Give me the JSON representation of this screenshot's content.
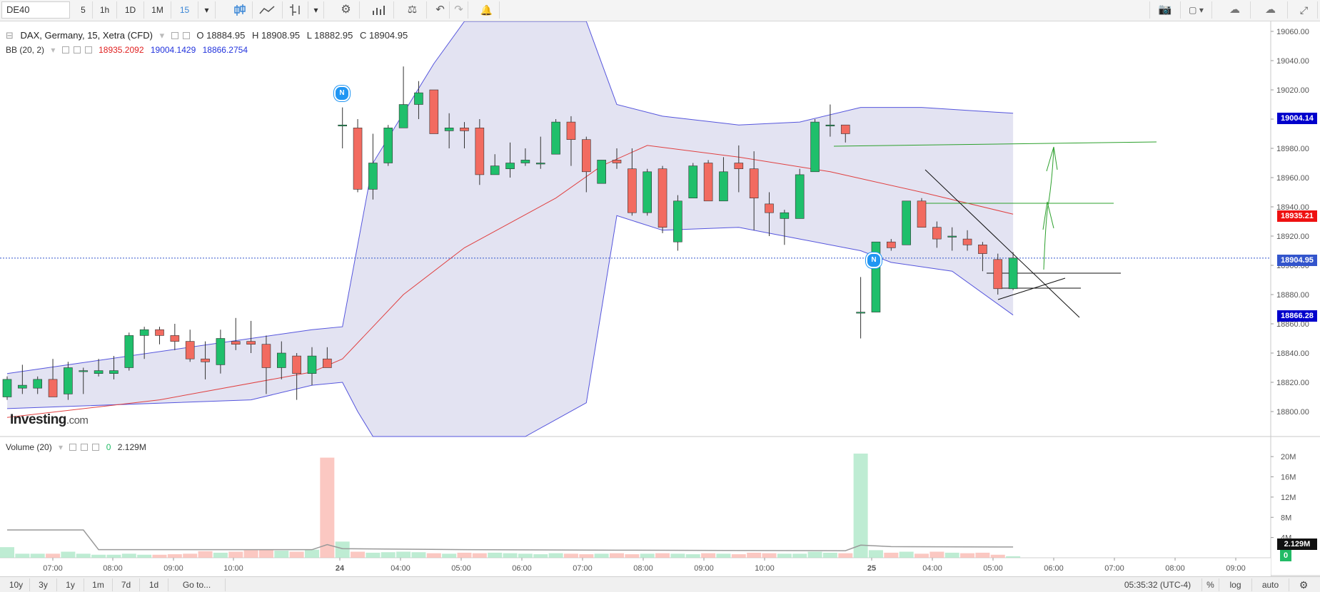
{
  "toolbar": {
    "symbol": "DE40",
    "intervals": [
      "5",
      "1h",
      "1D",
      "1M",
      "15"
    ]
  },
  "legend": {
    "collapse": "⊟",
    "title": "DAX, Germany, 15, Xetra (CFD)",
    "open": "O 18884.95",
    "high": "H 18908.95",
    "low": "L 18882.95",
    "close": "C 18904.95",
    "bb_label": "BB (20, 2)",
    "bb_mid": "18935.2092",
    "bb_upper": "19004.1429",
    "bb_lower": "18866.2754",
    "volume_label": "Volume (20)",
    "volume_zero": "0",
    "volume_value": "2.129M"
  },
  "watermark": {
    "brand": "Investing",
    "suffix": ".com"
  },
  "news_badges": [
    "N",
    "N"
  ],
  "price_axis": {
    "ticks": [
      "19060.00",
      "19040.00",
      "19020.00",
      "19000.00",
      "18980.00",
      "18960.00",
      "18940.00",
      "18920.00",
      "18900.00",
      "18880.00",
      "18860.00",
      "18840.00",
      "18820.00",
      "18800.00"
    ],
    "labels": [
      {
        "text": "19004.14",
        "color": "#0000cc"
      },
      {
        "text": "18935.21",
        "color": "#ee1111"
      },
      {
        "text": "18904.95",
        "color": "#3355cc"
      },
      {
        "text": "18866.28",
        "color": "#0000cc"
      }
    ]
  },
  "volume_axis": {
    "ticks": [
      "20M",
      "16M",
      "12M",
      "8M",
      "4M"
    ],
    "labels": [
      {
        "text": "2.129M",
        "color": "#111111"
      },
      {
        "text": "0",
        "color": "#22bb66"
      }
    ]
  },
  "time_axis": [
    "07:00",
    "08:00",
    "09:00",
    "10:00",
    "24",
    "04:00",
    "05:00",
    "06:00",
    "07:00",
    "08:00",
    "09:00",
    "10:00",
    "25",
    "04:00",
    "05:00",
    "06:00",
    "07:00",
    "08:00",
    "09:00"
  ],
  "bottom_bar": {
    "ranges": [
      "10y",
      "3y",
      "1y",
      "1m",
      "7d",
      "1d",
      "Go to..."
    ],
    "clock": "05:35:32 (UTC-4)",
    "percent": "%",
    "log": "log",
    "auto": "auto"
  },
  "chart_data": {
    "type": "candlestick",
    "instrument": "DAX, Germany, 15, Xetra (CFD)",
    "y_range": [
      18780,
      19070
    ],
    "candles": [
      [
        18810,
        18824,
        18808,
        18822
      ],
      [
        18816,
        18832,
        18812,
        18818
      ],
      [
        18816,
        18824,
        18812,
        18822
      ],
      [
        18822,
        18836,
        18810,
        18810
      ],
      [
        18812,
        18834,
        18808,
        18830
      ],
      [
        18828,
        18830,
        18812,
        18828
      ],
      [
        18826,
        18836,
        18824,
        18828
      ],
      [
        18826,
        18838,
        18822,
        18828
      ],
      [
        18830,
        18854,
        18828,
        18852
      ],
      [
        18852,
        18858,
        18836,
        18856
      ],
      [
        18856,
        18858,
        18846,
        18852
      ],
      [
        18852,
        18860,
        18842,
        18848
      ],
      [
        18848,
        18856,
        18834,
        18836
      ],
      [
        18836,
        18848,
        18822,
        18834
      ],
      [
        18832,
        18856,
        18826,
        18850
      ],
      [
        18848,
        18864,
        18842,
        18846
      ],
      [
        18848,
        18862,
        18840,
        18846
      ],
      [
        18846,
        18852,
        18812,
        18830
      ],
      [
        18830,
        18848,
        18822,
        18840
      ],
      [
        18838,
        18840,
        18808,
        18826
      ],
      [
        18826,
        18844,
        18818,
        18838
      ],
      [
        18836,
        18844,
        18830,
        18830
      ],
      [
        18996,
        19008,
        18980,
        18996
      ],
      [
        18994,
        19000,
        18950,
        18952
      ],
      [
        18952,
        18990,
        18945,
        18970
      ],
      [
        18970,
        18996,
        18968,
        18994
      ],
      [
        18994,
        19036,
        18994,
        19010
      ],
      [
        19010,
        19026,
        19000,
        19018
      ],
      [
        19020,
        19020,
        18990,
        18990
      ],
      [
        18992,
        19004,
        18980,
        18994
      ],
      [
        18994,
        18998,
        18980,
        18992
      ],
      [
        18994,
        19000,
        18955,
        18962
      ],
      [
        18962,
        18976,
        18962,
        18968
      ],
      [
        18966,
        18984,
        18960,
        18970
      ],
      [
        18970,
        18980,
        18968,
        18972
      ],
      [
        18970,
        18988,
        18966,
        18970
      ],
      [
        18976,
        19000,
        18976,
        18998
      ],
      [
        18998,
        19002,
        18968,
        18986
      ],
      [
        18986,
        18988,
        18950,
        18964
      ],
      [
        18956,
        18972,
        18956,
        18972
      ],
      [
        18972,
        18980,
        18966,
        18970
      ],
      [
        18966,
        18980,
        18934,
        18936
      ],
      [
        18936,
        18966,
        18934,
        18964
      ],
      [
        18966,
        18968,
        18922,
        18926
      ],
      [
        18916,
        18948,
        18910,
        18944
      ],
      [
        18946,
        18970,
        18946,
        18968
      ],
      [
        18970,
        18972,
        18944,
        18944
      ],
      [
        18944,
        18974,
        18944,
        18964
      ],
      [
        18970,
        18982,
        18950,
        18966
      ],
      [
        18966,
        18978,
        18924,
        18946
      ],
      [
        18942,
        18950,
        18920,
        18936
      ],
      [
        18932,
        18938,
        18914,
        18936
      ],
      [
        18932,
        18966,
        18932,
        18962
      ],
      [
        18964,
        19000,
        18964,
        18998
      ],
      [
        18996,
        19010,
        18988,
        18996
      ],
      [
        18996,
        18996,
        18984,
        18990
      ],
      [
        18868,
        18892,
        18850,
        18868
      ],
      [
        18868,
        18916,
        18868,
        18916
      ],
      [
        18916,
        18918,
        18910,
        18912
      ],
      [
        18914,
        18944,
        18914,
        18944
      ],
      [
        18944,
        18946,
        18926,
        18926
      ],
      [
        18926,
        18930,
        18912,
        18918
      ],
      [
        18920,
        18926,
        18910,
        18920
      ],
      [
        18918,
        18924,
        18910,
        18914
      ],
      [
        18914,
        18916,
        18896,
        18908
      ],
      [
        18904,
        18908,
        18880,
        18884
      ],
      [
        18884,
        18909,
        18883,
        18905
      ]
    ],
    "bollinger_upper": [
      [
        0,
        18826
      ],
      [
        20,
        18856
      ],
      [
        22,
        18858
      ],
      [
        24,
        18970
      ],
      [
        28,
        19038
      ],
      [
        30,
        19068
      ],
      [
        38,
        19068
      ],
      [
        40,
        19010
      ],
      [
        43,
        19002
      ],
      [
        48,
        18996
      ],
      [
        52,
        18998
      ],
      [
        56,
        19008
      ],
      [
        60,
        19008
      ],
      [
        66,
        19004
      ]
    ],
    "bollinger_lower": [
      [
        0,
        18802
      ],
      [
        16,
        18808
      ],
      [
        20,
        18818
      ],
      [
        22,
        18820
      ],
      [
        23,
        18800
      ],
      [
        24,
        18720
      ],
      [
        34,
        18720
      ],
      [
        38,
        18806
      ],
      [
        40,
        18934
      ],
      [
        43,
        18924
      ],
      [
        48,
        18926
      ],
      [
        52,
        18918
      ],
      [
        56,
        18910
      ],
      [
        58,
        18902
      ],
      [
        62,
        18896
      ],
      [
        66,
        18866
      ]
    ],
    "bollinger_mid": [
      [
        0,
        18796
      ],
      [
        10,
        18808
      ],
      [
        20,
        18827
      ],
      [
        22,
        18836
      ],
      [
        26,
        18880
      ],
      [
        30,
        18912
      ],
      [
        36,
        18946
      ],
      [
        39,
        18968
      ],
      [
        42,
        18982
      ],
      [
        48,
        18974
      ],
      [
        54,
        18964
      ],
      [
        60,
        18950
      ],
      [
        66,
        18935
      ]
    ],
    "volume": {
      "range": [
        0,
        22
      ],
      "unit": "M",
      "values": [
        2.1,
        0.8,
        0.8,
        0.8,
        1.2,
        0.8,
        0.6,
        0.6,
        0.8,
        0.6,
        0.6,
        0.7,
        0.8,
        1.3,
        1.0,
        1.2,
        1.5,
        1.6,
        1.4,
        1.2,
        1.6,
        19.8,
        3.2,
        1.2,
        1.0,
        1.1,
        1.2,
        1.1,
        0.9,
        0.8,
        1.0,
        0.9,
        1.0,
        0.9,
        0.8,
        0.7,
        0.9,
        0.8,
        0.7,
        0.8,
        0.9,
        0.7,
        0.8,
        0.9,
        0.8,
        0.7,
        0.9,
        0.8,
        0.7,
        1.0,
        0.9,
        0.8,
        0.8,
        1.2,
        1.0,
        0.9,
        20.6,
        1.5,
        1.0,
        1.2,
        0.8,
        1.2,
        1.0,
        0.9,
        1.0,
        0.6,
        0.3
      ],
      "avg": [
        [
          0,
          5.5
        ],
        [
          5,
          5.5
        ],
        [
          6,
          1.6
        ],
        [
          20,
          1.6
        ],
        [
          21,
          2.6
        ],
        [
          22,
          1.8
        ],
        [
          30,
          1.6
        ],
        [
          40,
          1.5
        ],
        [
          55,
          1.4
        ],
        [
          56,
          2.5
        ],
        [
          58,
          2.2
        ],
        [
          66,
          2.13
        ]
      ]
    }
  }
}
